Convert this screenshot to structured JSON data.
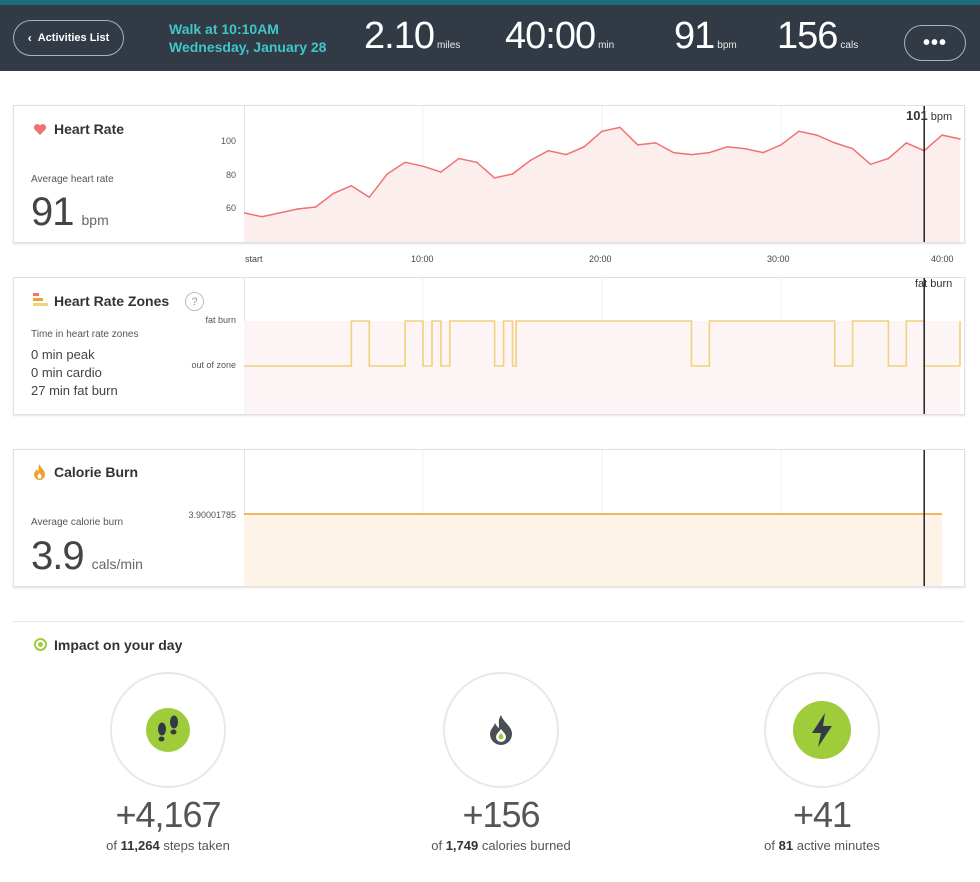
{
  "header": {
    "back_label": "Activities List",
    "activity_title": "Walk at 10:10AM",
    "activity_date": "Wednesday, January 28",
    "stats": [
      {
        "value": "2.10",
        "unit": "miles"
      },
      {
        "value": "40:00",
        "unit": "min"
      },
      {
        "value": "91",
        "unit": "bpm"
      },
      {
        "value": "156",
        "unit": "cals"
      }
    ],
    "more_label": "•••"
  },
  "heart_rate": {
    "title": "Heart Rate",
    "avg_label": "Average heart rate",
    "avg_value": "91",
    "avg_unit": "bpm",
    "yticks": [
      "100",
      "80",
      "60"
    ],
    "cursor_value": "101",
    "cursor_unit": "bpm",
    "color": "#f07272"
  },
  "x_axis": {
    "ticks": [
      "start",
      "10:00",
      "20:00",
      "30:00",
      "40:00"
    ]
  },
  "zones": {
    "title": "Heart Rate Zones",
    "help": "?",
    "summary_label": "Time in heart rate zones",
    "lines": [
      "0 min peak",
      "0 min cardio",
      "27 min fat burn"
    ],
    "levels": [
      "fat burn",
      "out of zone"
    ],
    "cursor_label": "fat burn",
    "color": "#f0d27a"
  },
  "calories": {
    "title": "Calorie Burn",
    "avg_label": "Average calorie burn",
    "avg_value": "3.9",
    "avg_unit": "cals/min",
    "line_value": "3.90001785",
    "color": "#f0a030"
  },
  "impact": {
    "title": "Impact on your day",
    "items": [
      {
        "icon": "footsteps-icon",
        "delta": "+4,167",
        "prefix": "of",
        "total": "11,264",
        "suffix": "steps taken"
      },
      {
        "icon": "flame-icon",
        "delta": "+156",
        "prefix": "of",
        "total": "1,749",
        "suffix": "calories burned"
      },
      {
        "icon": "lightning-icon",
        "delta": "+41",
        "prefix": "of",
        "total": "81",
        "suffix": "active minutes"
      }
    ]
  },
  "chart_data": [
    {
      "type": "line",
      "title": "Heart Rate",
      "ylabel": "bpm",
      "x_ticks": [
        "start",
        "10:00",
        "20:00",
        "30:00",
        "40:00"
      ],
      "ylim": [
        45,
        115
      ],
      "x": [
        0,
        1,
        2,
        3,
        4,
        5,
        6,
        7,
        8,
        9,
        10,
        11,
        12,
        13,
        14,
        15,
        16,
        17,
        18,
        19,
        20,
        21,
        22,
        23,
        24,
        25,
        26,
        27,
        28,
        29,
        30,
        31,
        32,
        33,
        34,
        35,
        36,
        37,
        38,
        39,
        40
      ],
      "y": [
        60,
        58,
        60,
        62,
        63,
        70,
        74,
        68,
        80,
        86,
        84,
        81,
        88,
        86,
        78,
        80,
        87,
        92,
        90,
        94,
        102,
        104,
        95,
        96,
        91,
        90,
        91,
        94,
        93,
        91,
        95,
        102,
        100,
        96,
        93,
        85,
        88,
        96,
        92,
        100,
        98
      ]
    },
    {
      "type": "line",
      "title": "Heart Rate Zones",
      "categories": [
        "fat burn",
        "out of zone"
      ],
      "x": [
        0,
        6,
        7,
        9,
        10,
        10.5,
        11,
        11.5,
        14,
        14.5,
        15,
        15.2,
        16,
        25,
        26,
        33,
        34,
        36,
        37,
        38,
        40
      ],
      "y": [
        "out of zone",
        "fat burn",
        "out of zone",
        "fat burn",
        "out of zone",
        "fat burn",
        "out of zone",
        "fat burn",
        "out of zone",
        "fat burn",
        "out of zone",
        "fat burn",
        "fat burn",
        "out of zone",
        "fat burn",
        "out of zone",
        "fat burn",
        "out of zone",
        "fat burn",
        "out of zone",
        "fat burn"
      ]
    },
    {
      "type": "line",
      "title": "Calorie Burn",
      "ylabel": "cals/min",
      "x": [
        0,
        39
      ],
      "y": [
        3.90001785,
        3.90001785
      ]
    }
  ]
}
